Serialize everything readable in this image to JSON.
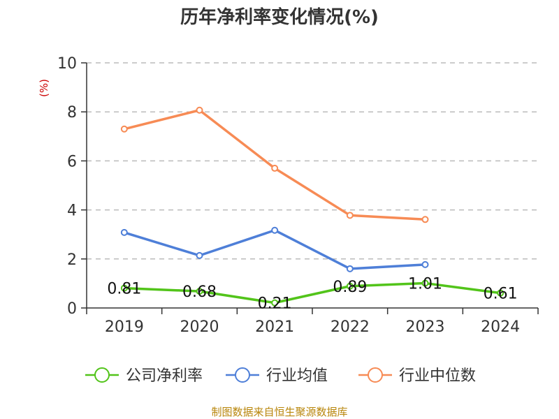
{
  "chart_data": {
    "type": "line",
    "title": "历年净利率变化情况(%)",
    "ylabel": "(%)",
    "xlabel": "",
    "categories": [
      "2019",
      "2020",
      "2021",
      "2022",
      "2023",
      "2024"
    ],
    "ylim": [
      0,
      10
    ],
    "yticks": [
      0,
      2,
      4,
      6,
      8,
      10
    ],
    "grid": true,
    "legend_position": "bottom",
    "series": [
      {
        "name": "公司净利率",
        "color": "#52c41a",
        "values": [
          0.81,
          0.68,
          0.21,
          0.89,
          1.01,
          0.61
        ],
        "show_labels": true
      },
      {
        "name": "行业均值",
        "color": "#4e7fd8",
        "values": [
          3.08,
          2.14,
          3.17,
          1.6,
          1.77,
          null
        ],
        "show_labels": false
      },
      {
        "name": "行业中位数",
        "color": "#f78b55",
        "values": [
          7.3,
          8.07,
          5.7,
          3.78,
          3.61,
          null
        ],
        "show_labels": false
      }
    ]
  },
  "source": "制图数据来自恒生聚源数据库"
}
